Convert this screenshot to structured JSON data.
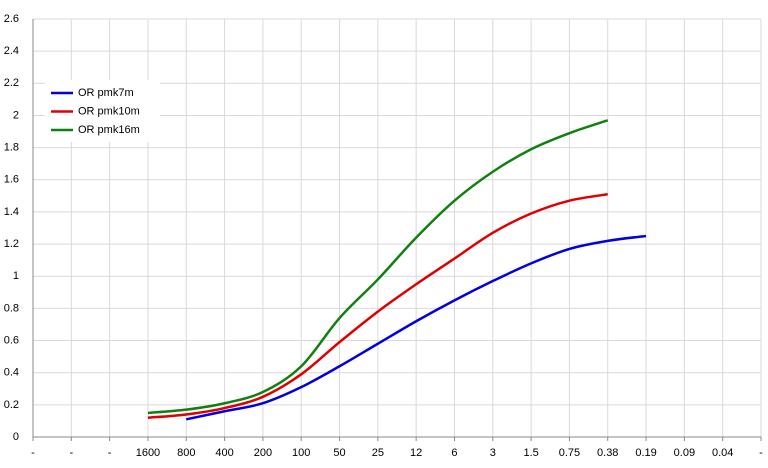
{
  "chart_data": {
    "type": "line",
    "categories": [
      "-",
      "-",
      "-",
      "1600",
      "800",
      "400",
      "200",
      "100",
      "50",
      "25",
      "12",
      "6",
      "3",
      "1.5",
      "0.75",
      "0.38",
      "0.19",
      "0.09",
      "0.04",
      "-"
    ],
    "series": [
      {
        "name": "OR pmk7m",
        "color": "#0000e0",
        "values": [
          null,
          null,
          null,
          null,
          0.11,
          0.16,
          0.21,
          0.31,
          0.44,
          0.58,
          0.72,
          0.85,
          0.97,
          1.08,
          1.17,
          1.22,
          1.25,
          null,
          null,
          null
        ]
      },
      {
        "name": "OR pmk10m",
        "color": "#e00000",
        "values": [
          null,
          null,
          null,
          0.12,
          0.14,
          0.18,
          0.25,
          0.39,
          0.59,
          0.78,
          0.95,
          1.11,
          1.27,
          1.39,
          1.47,
          1.51,
          null,
          null,
          null,
          null
        ]
      },
      {
        "name": "OR pmk16m",
        "color": "#108010",
        "values": [
          null,
          null,
          null,
          0.15,
          0.17,
          0.21,
          0.28,
          0.44,
          0.74,
          0.98,
          1.24,
          1.47,
          1.65,
          1.79,
          1.89,
          1.97,
          null,
          null,
          null,
          null
        ]
      }
    ],
    "ylim": [
      0,
      2.6
    ],
    "yticks": [
      0,
      0.2,
      0.4,
      0.6,
      0.8,
      1,
      1.2,
      1.4,
      1.6,
      1.8,
      2,
      2.2,
      2.4,
      2.6
    ],
    "grid": true,
    "legend": "upper left"
  }
}
